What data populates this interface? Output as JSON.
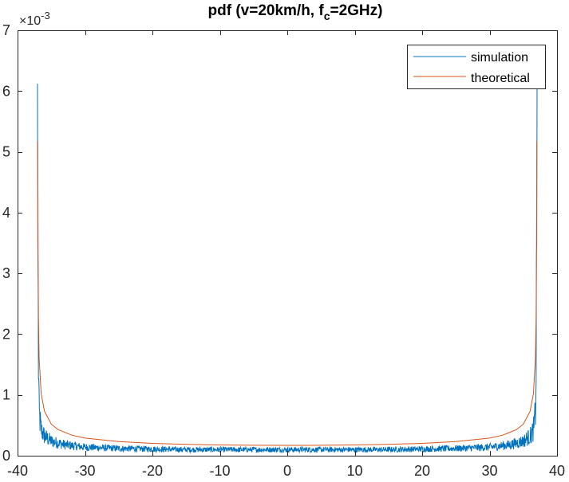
{
  "chart_data": {
    "type": "line",
    "title_main": "pdf (v=20km/h, f",
    "title_sub": "c",
    "title_tail": "=2GHz)",
    "xlabel": "",
    "ylabel": "",
    "xlim": [
      -40,
      40
    ],
    "ylim": [
      0,
      0.007
    ],
    "y_exponent_base": "×10",
    "y_exponent_power": "-3",
    "x_ticks": [
      -40,
      -30,
      -20,
      -10,
      0,
      10,
      20,
      30,
      40
    ],
    "x_tick_labels": [
      "-40",
      "-30",
      "-20",
      "-10",
      "0",
      "10",
      "20",
      "30",
      "40"
    ],
    "y_ticks": [
      0,
      0.001,
      0.002,
      0.003,
      0.004,
      0.005,
      0.006,
      0.007
    ],
    "y_tick_labels": [
      "0",
      "1",
      "2",
      "3",
      "4",
      "5",
      "6",
      "7"
    ],
    "grid": false,
    "legend_position": "top-right",
    "max_doppler_hz": 37.04,
    "series": [
      {
        "name": "simulation",
        "color": "#0072BD",
        "x": [
          -37.04,
          -37.0,
          -36.9,
          -36.8,
          -36.5,
          -36.0,
          -35.0,
          -33.0,
          -30.0,
          -25.0,
          -20.0,
          -15.0,
          -10.0,
          -5.0,
          0.0,
          5.0,
          10.0,
          15.0,
          20.0,
          25.0,
          30.0,
          33.0,
          35.0,
          36.0,
          36.5,
          36.8,
          36.9,
          37.0,
          37.04
        ],
        "y": [
          0.00612,
          0.0036,
          0.0015,
          0.0007,
          0.00042,
          0.00032,
          0.00024,
          0.00018,
          0.00014,
          0.00012,
          0.00011,
          0.0001,
          0.0001,
          0.0001,
          0.0001,
          0.0001,
          0.0001,
          0.0001,
          0.00011,
          0.00012,
          0.00014,
          0.00018,
          0.00024,
          0.00032,
          0.00042,
          0.0007,
          0.0015,
          0.0036,
          0.00612
        ]
      },
      {
        "name": "theoretical",
        "color": "#D95319",
        "x": [
          -37.0,
          -36.95,
          -36.9,
          -36.8,
          -36.5,
          -36.0,
          -35.0,
          -34.0,
          -32.0,
          -30.0,
          -25.0,
          -20.0,
          -15.0,
          -10.0,
          -5.0,
          0.0,
          5.0,
          10.0,
          15.0,
          20.0,
          25.0,
          30.0,
          32.0,
          34.0,
          35.0,
          36.0,
          36.5,
          36.8,
          36.9,
          36.95,
          37.0
        ],
        "y": [
          0.00518,
          0.00322,
          0.00228,
          0.00161,
          0.00102,
          0.00073,
          0.00052,
          0.00043,
          0.00034,
          0.00029,
          0.000233,
          0.000204,
          0.000187,
          0.000177,
          0.000172,
          0.00017,
          0.000172,
          0.000177,
          0.000187,
          0.000204,
          0.000233,
          0.00029,
          0.00034,
          0.00043,
          0.00052,
          0.00073,
          0.00102,
          0.00161,
          0.00228,
          0.00322,
          0.00518
        ]
      }
    ]
  }
}
